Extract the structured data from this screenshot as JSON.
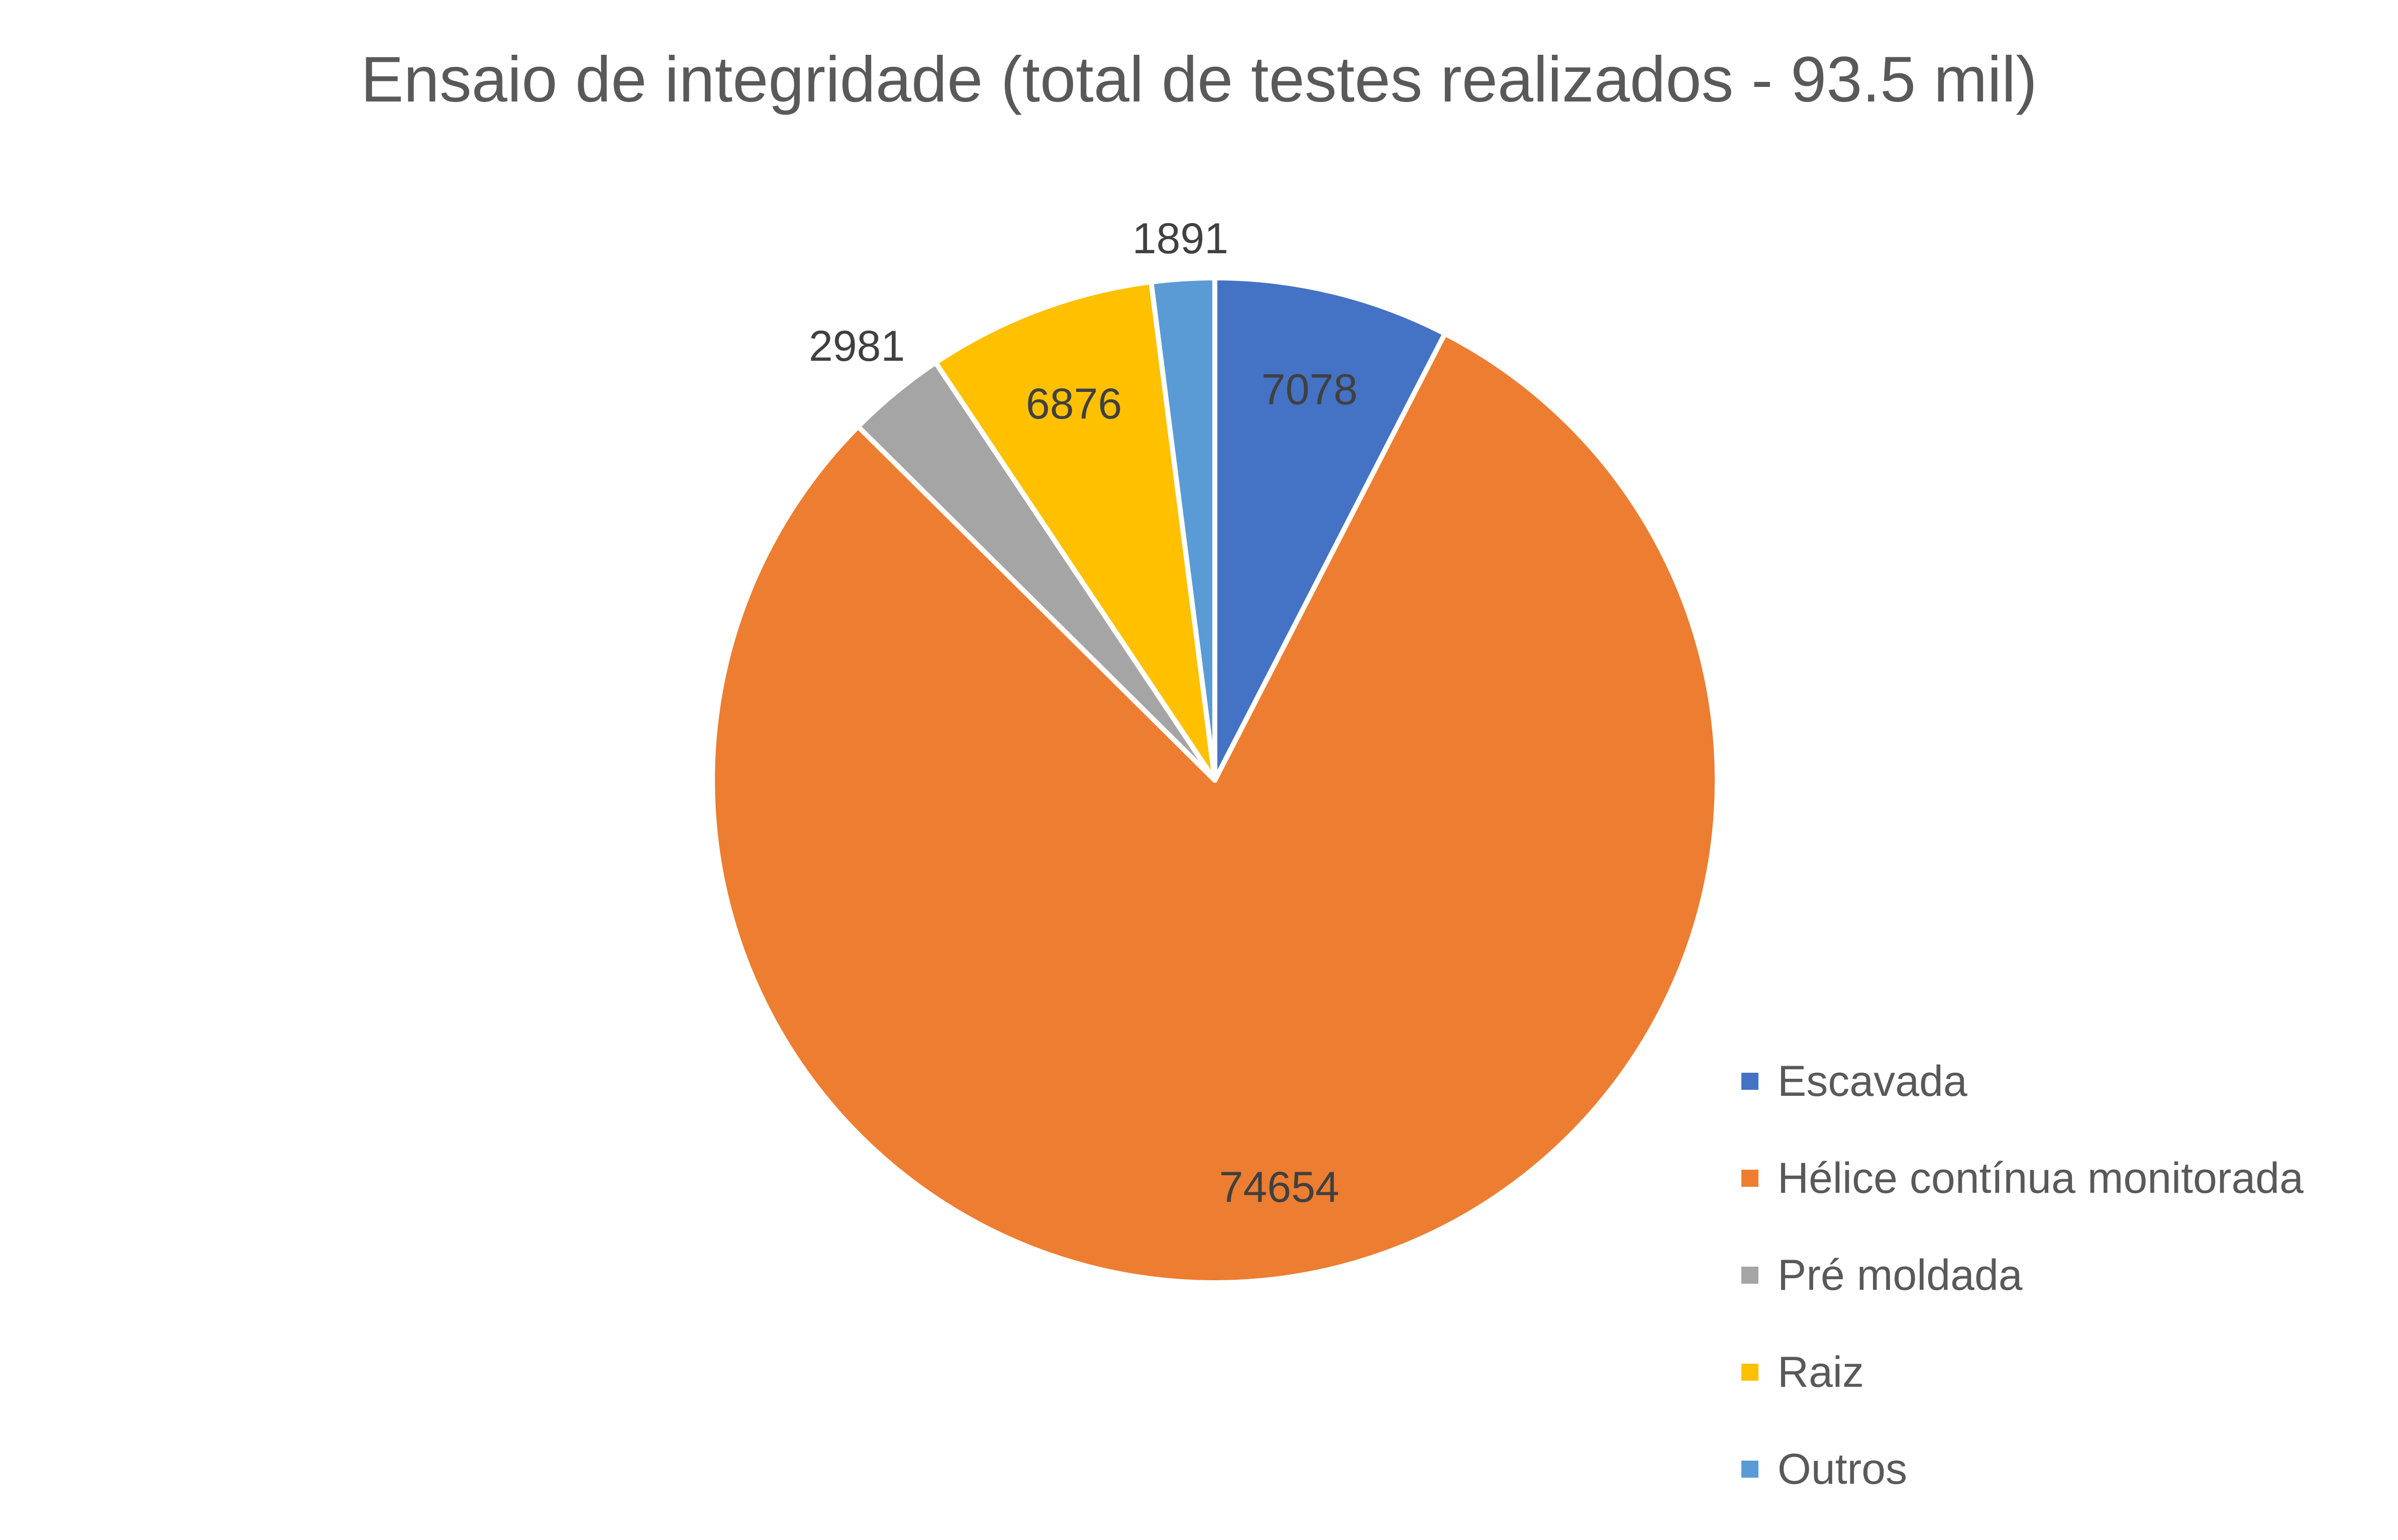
{
  "chart_data": {
    "type": "pie",
    "title": "Ensaio de integridade (total de testes realizados - 93.5 mil)",
    "categories": [
      "Escavada",
      "Hélice contínua monitorada",
      "Pré moldada",
      "Raiz",
      "Outros"
    ],
    "values": [
      7078,
      74654,
      2981,
      6876,
      1891
    ],
    "colors": [
      "#4472C4",
      "#ED7D31",
      "#A5A5A5",
      "#FFC000",
      "#5B9BD5"
    ],
    "data_labels": [
      "7078",
      "74654",
      "2981",
      "6876",
      "1891"
    ],
    "legend_position": "bottom-right",
    "start_angle_deg": 0,
    "direction": "clockwise"
  }
}
